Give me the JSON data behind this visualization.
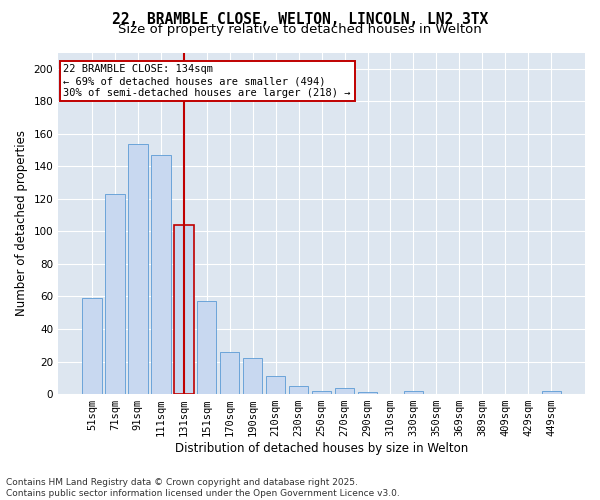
{
  "title_line1": "22, BRAMBLE CLOSE, WELTON, LINCOLN, LN2 3TX",
  "title_line2": "Size of property relative to detached houses in Welton",
  "xlabel": "Distribution of detached houses by size in Welton",
  "ylabel": "Number of detached properties",
  "categories": [
    "51sqm",
    "71sqm",
    "91sqm",
    "111sqm",
    "131sqm",
    "151sqm",
    "170sqm",
    "190sqm",
    "210sqm",
    "230sqm",
    "250sqm",
    "270sqm",
    "290sqm",
    "310sqm",
    "330sqm",
    "350sqm",
    "369sqm",
    "389sqm",
    "409sqm",
    "429sqm",
    "449sqm"
  ],
  "values": [
    59,
    123,
    154,
    147,
    104,
    57,
    26,
    22,
    11,
    5,
    2,
    4,
    1,
    0,
    2,
    0,
    0,
    0,
    0,
    0,
    2
  ],
  "bar_color": "#c8d8f0",
  "bar_edge_color": "#5b9bd5",
  "highlight_bar_edge_color": "#c00000",
  "highlight_index": 4,
  "ylim": [
    0,
    210
  ],
  "yticks": [
    0,
    20,
    40,
    60,
    80,
    100,
    120,
    140,
    160,
    180,
    200
  ],
  "annotation_text": "22 BRAMBLE CLOSE: 134sqm\n← 69% of detached houses are smaller (494)\n30% of semi-detached houses are larger (218) →",
  "annotation_box_facecolor": "#ffffff",
  "annotation_box_edgecolor": "#c00000",
  "footer_line1": "Contains HM Land Registry data © Crown copyright and database right 2025.",
  "footer_line2": "Contains public sector information licensed under the Open Government Licence v3.0.",
  "figure_background_color": "#ffffff",
  "plot_background_color": "#dde6f0",
  "grid_color": "#ffffff",
  "title_fontsize": 10.5,
  "subtitle_fontsize": 9.5,
  "axis_label_fontsize": 8.5,
  "tick_fontsize": 7.5,
  "annotation_fontsize": 7.5,
  "footer_fontsize": 6.5
}
